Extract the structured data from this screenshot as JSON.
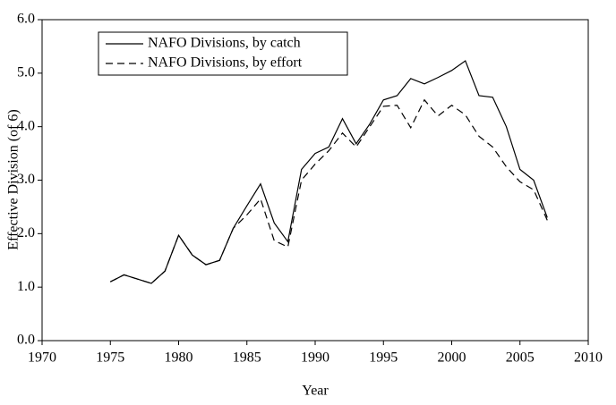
{
  "chart_data": {
    "type": "line",
    "x_label": "Year",
    "y_label": "Effective Division (of 6)",
    "x": [
      1975,
      1976,
      1977,
      1978,
      1979,
      1980,
      1981,
      1982,
      1983,
      1984,
      1985,
      1986,
      1987,
      1988,
      1989,
      1990,
      1991,
      1992,
      1993,
      1994,
      1995,
      1996,
      1997,
      1998,
      1999,
      2000,
      2001,
      2002,
      2003,
      2004,
      2005,
      2006,
      2007
    ],
    "series": [
      {
        "name": "NAFO Divisions, by catch",
        "color": "#000000",
        "dashed": false,
        "values": [
          1.1,
          1.23,
          1.15,
          1.07,
          1.3,
          1.97,
          1.6,
          1.42,
          1.5,
          2.1,
          2.52,
          2.93,
          2.2,
          1.85,
          3.2,
          3.5,
          3.62,
          4.15,
          3.68,
          4.05,
          4.5,
          4.58,
          4.9,
          4.8,
          4.92,
          5.05,
          5.23,
          4.58,
          4.55,
          4.0,
          3.2,
          3.0,
          2.3
        ]
      },
      {
        "name": "NAFO Divisions, by effort",
        "color": "#000000",
        "dashed": true,
        "values": [
          1.1,
          1.23,
          1.15,
          1.07,
          1.3,
          1.97,
          1.6,
          1.42,
          1.5,
          2.1,
          2.35,
          2.65,
          1.87,
          1.75,
          3.0,
          3.3,
          3.55,
          3.88,
          3.62,
          4.0,
          4.38,
          4.4,
          3.98,
          4.5,
          4.2,
          4.4,
          4.22,
          3.82,
          3.62,
          3.25,
          2.97,
          2.82,
          2.25
        ]
      }
    ],
    "xlim": [
      1970,
      2010
    ],
    "xticks": [
      1970,
      1975,
      1980,
      1985,
      1990,
      1995,
      2000,
      2005,
      2010
    ],
    "ylim": [
      0,
      6
    ],
    "yticks": [
      {
        "value": 0,
        "label": "0.0"
      },
      {
        "value": 1,
        "label": "1.0"
      },
      {
        "value": 2,
        "label": "2.0"
      },
      {
        "value": 3,
        "label": "3.0"
      },
      {
        "value": 4,
        "label": "4.0"
      },
      {
        "value": 5,
        "label": "5.0"
      },
      {
        "value": 6,
        "label": "6.0"
      }
    ],
    "legend": "upper left"
  }
}
